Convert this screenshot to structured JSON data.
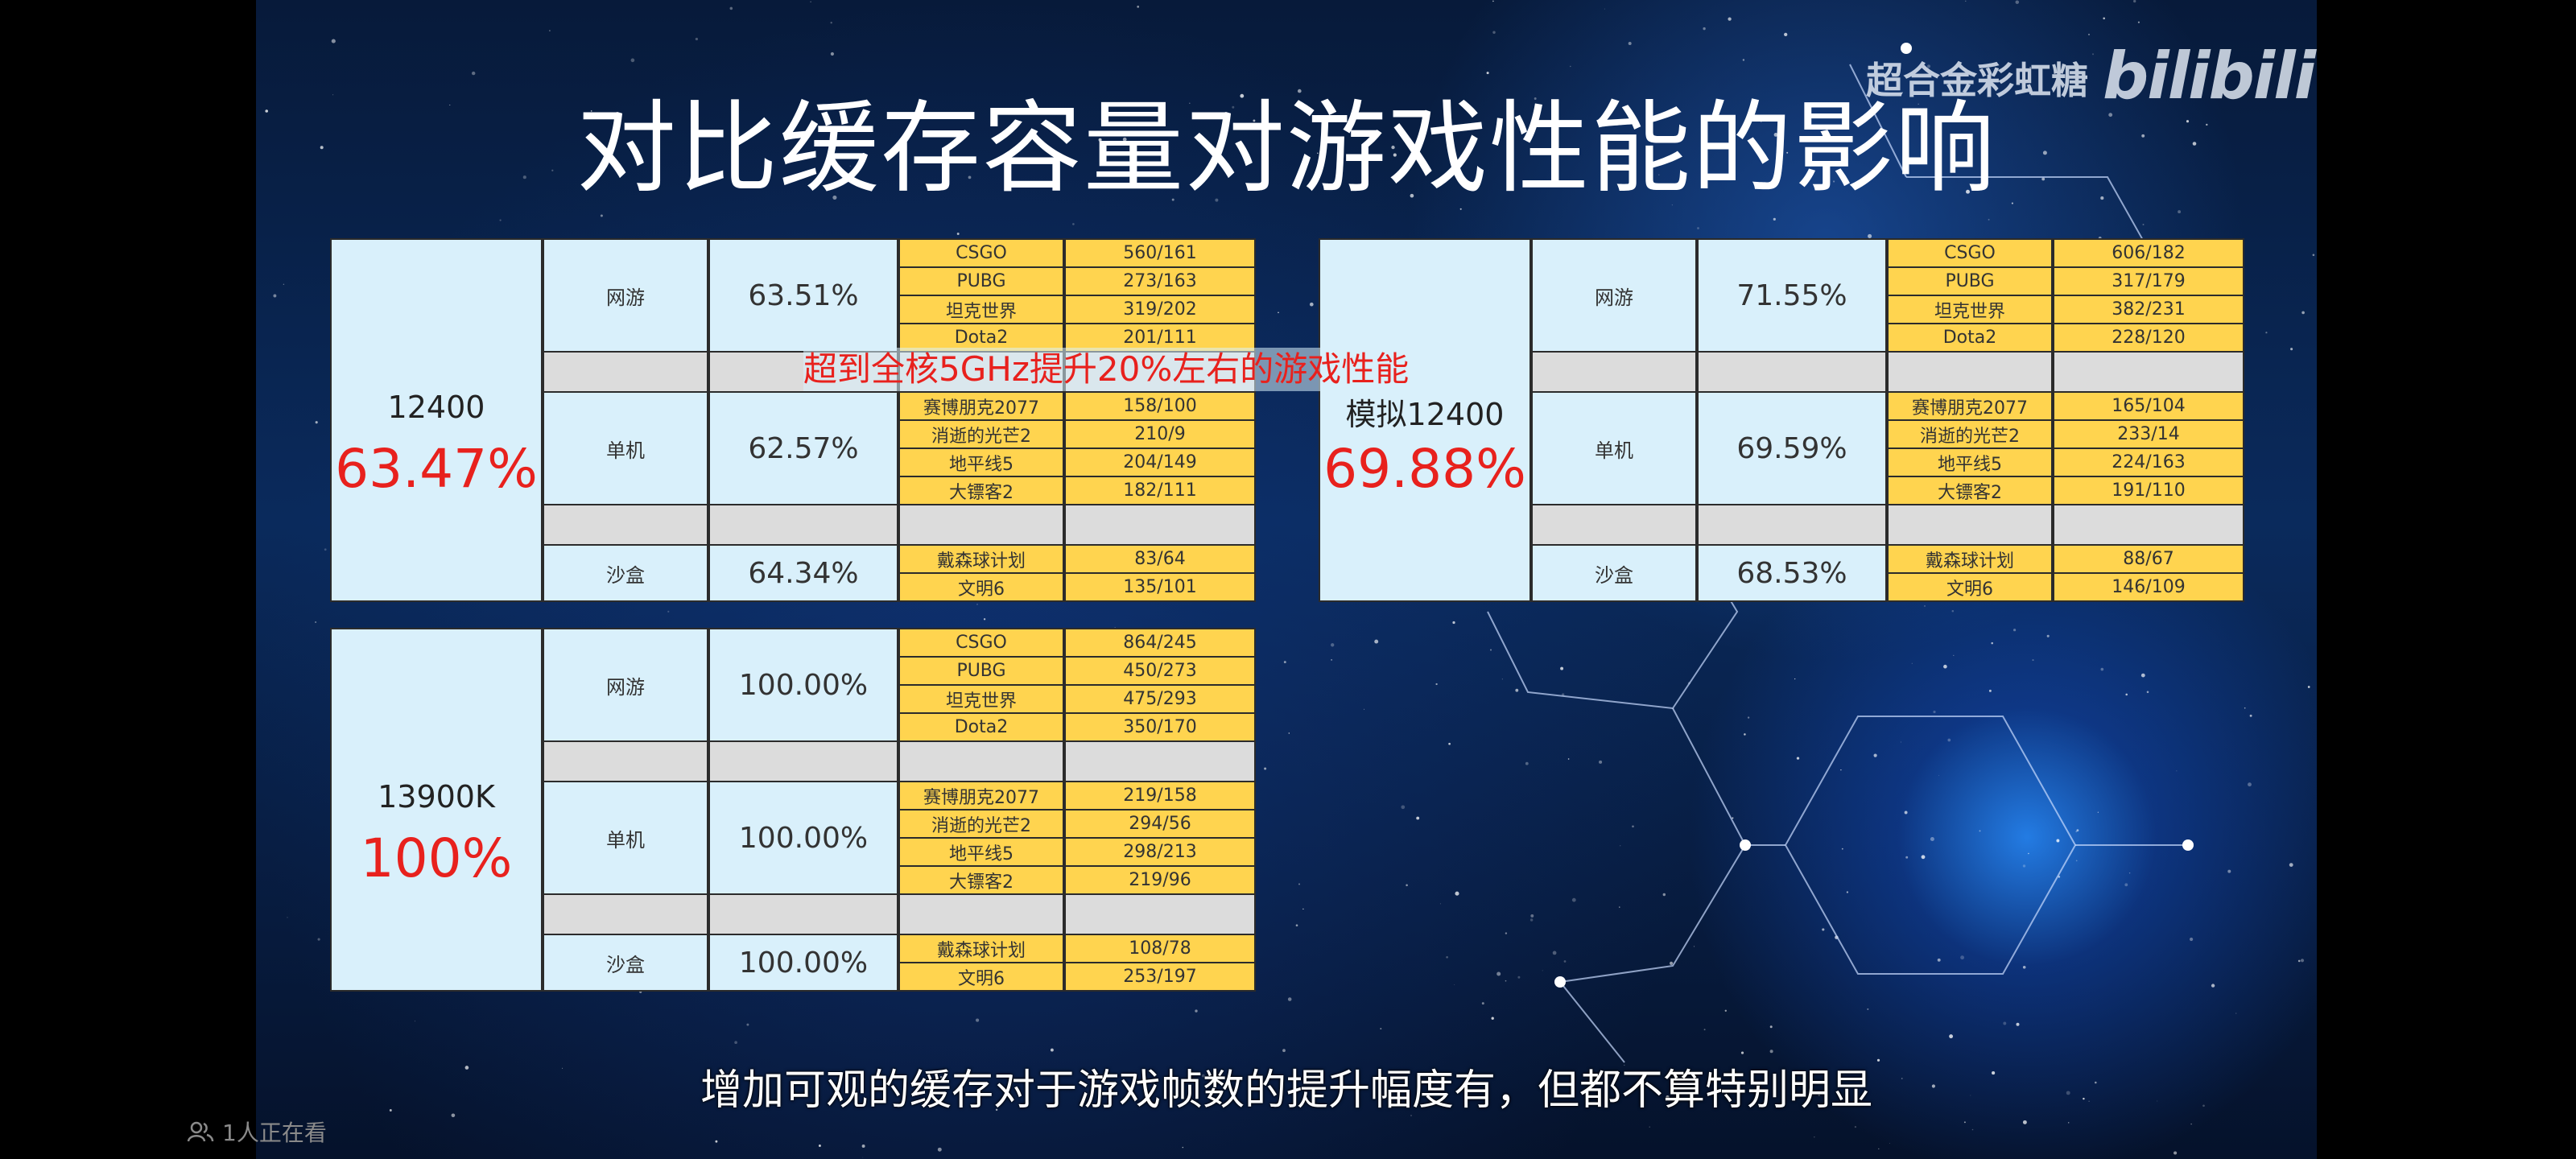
{
  "title": "对比缓存容量对游戏性能的影响",
  "watermark": {
    "uploader": "超合金彩虹糖",
    "brand": "bilibili"
  },
  "subtitle": "增加可观的缓存对于游戏帧数的提升幅度有，但都不算特别明显",
  "viewers": {
    "text": "1人正在看",
    "icon": "viewers-icon"
  },
  "annotation": "超到全核5GHz提升20%左右的游戏性能",
  "panels": [
    {
      "id": "p12400",
      "cpu": "12400",
      "overall": "63.47%",
      "groups": [
        {
          "category": "网游",
          "percent": "63.51%",
          "games": [
            {
              "name": "CSGO",
              "value": "560/161"
            },
            {
              "name": "PUBG",
              "value": "273/163"
            },
            {
              "name": "坦克世界",
              "value": "319/202"
            },
            {
              "name": "Dota2",
              "value": "201/111"
            }
          ]
        },
        {
          "category": "单机",
          "percent": "62.57%",
          "games": [
            {
              "name": "赛博朋克2077",
              "value": "158/100"
            },
            {
              "name": "消逝的光芒2",
              "value": "210/9"
            },
            {
              "name": "地平线5",
              "value": "204/149"
            },
            {
              "name": "大镖客2",
              "value": "182/111"
            }
          ]
        },
        {
          "category": "沙盒",
          "percent": "64.34%",
          "games": [
            {
              "name": "戴森球计划",
              "value": "83/64"
            },
            {
              "name": "文明6",
              "value": "135/101"
            }
          ]
        }
      ]
    },
    {
      "id": "psim",
      "cpu": "模拟12400",
      "overall": "69.88%",
      "groups": [
        {
          "category": "网游",
          "percent": "71.55%",
          "games": [
            {
              "name": "CSGO",
              "value": "606/182"
            },
            {
              "name": "PUBG",
              "value": "317/179"
            },
            {
              "name": "坦克世界",
              "value": "382/231"
            },
            {
              "name": "Dota2",
              "value": "228/120"
            }
          ]
        },
        {
          "category": "单机",
          "percent": "69.59%",
          "games": [
            {
              "name": "赛博朋克2077",
              "value": "165/104"
            },
            {
              "name": "消逝的光芒2",
              "value": "233/14"
            },
            {
              "name": "地平线5",
              "value": "224/163"
            },
            {
              "name": "大镖客2",
              "value": "191/110"
            }
          ]
        },
        {
          "category": "沙盒",
          "percent": "68.53%",
          "games": [
            {
              "name": "戴森球计划",
              "value": "88/67"
            },
            {
              "name": "文明6",
              "value": "146/109"
            }
          ]
        }
      ]
    },
    {
      "id": "p13900k",
      "cpu": "13900K",
      "overall": "100%",
      "groups": [
        {
          "category": "网游",
          "percent": "100.00%",
          "games": [
            {
              "name": "CSGO",
              "value": "864/245"
            },
            {
              "name": "PUBG",
              "value": "450/273"
            },
            {
              "name": "坦克世界",
              "value": "475/293"
            },
            {
              "name": "Dota2",
              "value": "350/170"
            }
          ]
        },
        {
          "category": "单机",
          "percent": "100.00%",
          "games": [
            {
              "name": "赛博朋克2077",
              "value": "219/158"
            },
            {
              "name": "消逝的光芒2",
              "value": "294/56"
            },
            {
              "name": "地平线5",
              "value": "298/213"
            },
            {
              "name": "大镖客2",
              "value": "219/96"
            }
          ]
        },
        {
          "category": "沙盒",
          "percent": "100.00%",
          "games": [
            {
              "name": "戴森球计划",
              "value": "108/78"
            },
            {
              "name": "文明6",
              "value": "253/197"
            }
          ]
        }
      ]
    }
  ]
}
